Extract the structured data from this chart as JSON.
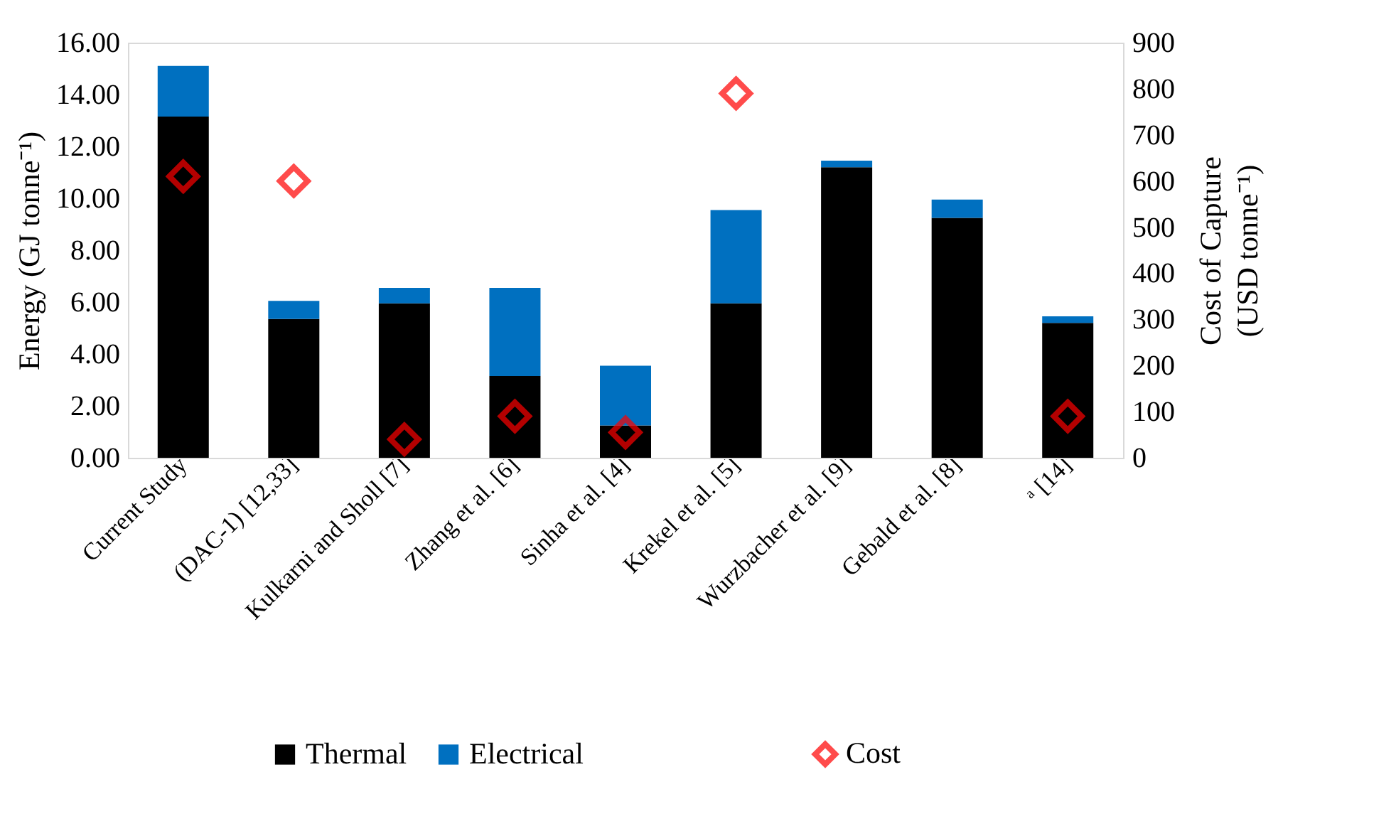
{
  "chart_data": {
    "type": "bar",
    "stacked": true,
    "categories": [
      "Current Study",
      "(DAC-1) [12,33]",
      "Kulkarni and Sholl [7]",
      "Zhang et al. [6]",
      "Sinha et al. [4]",
      "Krekel et al. [5]",
      "Wurzbacher et al. [9]",
      "Gebald et al. [8]",
      "ᵃ [14]"
    ],
    "series": [
      {
        "name": "Thermal",
        "color": "#000000",
        "values": [
          13.15,
          5.35,
          5.95,
          3.15,
          1.25,
          5.95,
          11.2,
          9.25,
          5.2
        ]
      },
      {
        "name": "Electrical",
        "color": "#0070c0",
        "values": [
          1.95,
          0.7,
          0.6,
          3.4,
          2.3,
          3.6,
          0.25,
          0.7,
          0.25
        ]
      },
      {
        "name": "Cost",
        "type": "scatter",
        "axis": "y2",
        "color": "#ff0000",
        "marker": "diamond",
        "x": [
          "Current Study",
          "(DAC-1) [12,33]",
          "Kulkarni and Sholl [7]",
          "Zhang et al. [6]",
          "Sinha et al. [4]",
          "Krekel et al. [5]",
          "Wurzbacher et al. [9]",
          "Gebald et al. [8]",
          "ᵃ [14]"
        ],
        "values": [
          610,
          600,
          40,
          90,
          55,
          790,
          null,
          null,
          90
        ]
      }
    ],
    "ylabel": "Energy (GJ tonne⁻¹)",
    "y2label": "Cost of Capture (USD tonne⁻¹)",
    "ylim": [
      0,
      16
    ],
    "yticks": [
      {
        "value": 0,
        "label": "0.00"
      },
      {
        "value": 2,
        "label": "2.00"
      },
      {
        "value": 4,
        "label": "4.00"
      },
      {
        "value": 6,
        "label": "6.00"
      },
      {
        "value": 8,
        "label": "8.00"
      },
      {
        "value": 10,
        "label": "10.00"
      },
      {
        "value": 12,
        "label": "12.00"
      },
      {
        "value": 14,
        "label": "14.00"
      },
      {
        "value": 16,
        "label": "16.00"
      }
    ],
    "y2lim": [
      0,
      900
    ],
    "y2ticks": [
      0,
      100,
      200,
      300,
      400,
      500,
      600,
      700,
      800,
      900
    ],
    "grid": false,
    "legend": "bottom"
  }
}
